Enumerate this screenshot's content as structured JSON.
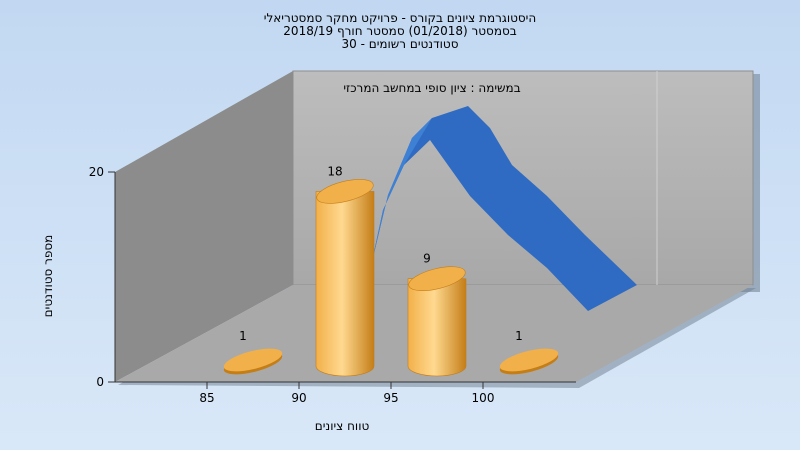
{
  "chart_data": {
    "type": "bar",
    "title_lines": [
      "היסטוגרמת ציונים בקורס - פרויקט מחקר סמסטריאלי",
      "בסמסטר  (01/2018)  סמסטר חורף 2018/19",
      "סטודנטים רשומים - 30"
    ],
    "annotation": "במשימה : ציון סופי במחשב המרכזי",
    "xlabel": "טווח ציונים",
    "ylabel": "מספר סטודנטים",
    "x_ticks": [
      "85",
      "90",
      "95",
      "100"
    ],
    "y_ticks": [
      "0",
      "20"
    ],
    "ylim": [
      0,
      20
    ],
    "categories": [
      "87.5",
      "92.5",
      "97.5",
      "102.5"
    ],
    "series": [
      {
        "values": [
          1,
          18,
          9,
          1
        ],
        "data_labels": [
          "1",
          "18",
          "9",
          "1"
        ]
      }
    ],
    "curve": {
      "type": "line",
      "values": [
        1,
        18,
        9,
        1
      ]
    },
    "colors": {
      "bar_light": "#FFD990",
      "bar_mid": "#F2B04A",
      "bar_dark": "#C47E18",
      "curve": "#2F6BC2",
      "curve_light": "#3F83D6",
      "back_wall": "#B5B5B5",
      "side_wall": "#8C8C8C",
      "floor": "#A9A9A9",
      "background_top": "#C2D8F2",
      "background_bottom": "#D9E8F8"
    },
    "grid": true,
    "style": "3d"
  }
}
